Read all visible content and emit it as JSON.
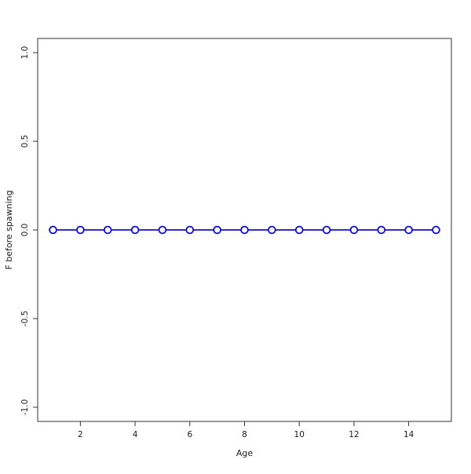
{
  "chart_data": {
    "type": "line",
    "title": "",
    "xlabel": "Age",
    "ylabel": "F before spawning",
    "x": [
      1,
      2,
      3,
      4,
      5,
      6,
      7,
      8,
      9,
      10,
      11,
      12,
      13,
      14,
      15
    ],
    "y": [
      0,
      0,
      0,
      0,
      0,
      0,
      0,
      0,
      0,
      0,
      0,
      0,
      0,
      0,
      0
    ],
    "series": [
      {
        "name": "F before spawning",
        "values": [
          0,
          0,
          0,
          0,
          0,
          0,
          0,
          0,
          0,
          0,
          0,
          0,
          0,
          0,
          0
        ],
        "color": "#0b0bee",
        "marker": "open-circle"
      }
    ],
    "x_ticks": [
      2,
      4,
      6,
      8,
      10,
      12,
      14
    ],
    "x_tick_labels": [
      "2",
      "4",
      "6",
      "8",
      "10",
      "12",
      "14"
    ],
    "y_ticks": [
      -1.0,
      -0.5,
      0.0,
      0.5,
      1.0
    ],
    "y_tick_labels": [
      "-1.0",
      "-0.5",
      "0.0",
      "0.5",
      "1.0"
    ],
    "xlim": [
      0.44,
      15.56
    ],
    "ylim": [
      -1.08,
      1.08
    ],
    "grid": "off",
    "legend": "none",
    "box_color": "#333333",
    "tick_label_color": "#1a1a1a"
  }
}
